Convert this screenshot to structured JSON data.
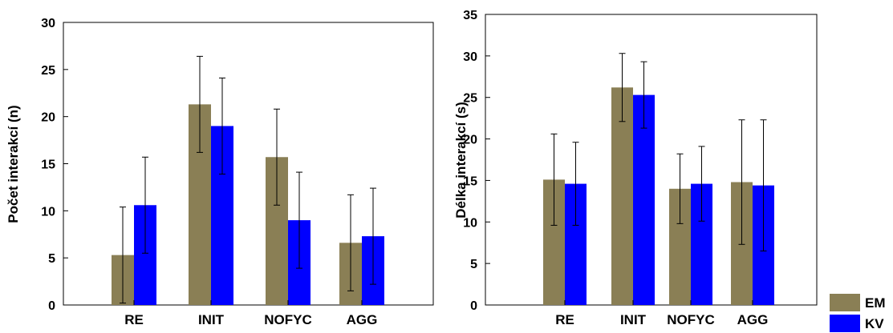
{
  "chart_data": [
    {
      "type": "bar",
      "ylabel": "Počet interakcí (n)",
      "ylim": [
        0,
        30
      ],
      "yticks": [
        0,
        5,
        10,
        15,
        20,
        25,
        30
      ],
      "categories": [
        "RE",
        "INIT",
        "NOFYC",
        "AGG"
      ],
      "series": [
        {
          "name": "EM",
          "color": "#8a7f55",
          "values": [
            5.3,
            21.3,
            15.7,
            6.6
          ],
          "error": [
            5.1,
            5.1,
            5.1,
            5.1
          ]
        },
        {
          "name": "KV",
          "color": "#0000ff",
          "values": [
            10.6,
            19.0,
            9.0,
            7.3
          ],
          "error": [
            5.1,
            5.1,
            5.1,
            5.1
          ]
        }
      ],
      "grid": false
    },
    {
      "type": "bar",
      "ylabel": "Délka interakcí (s)",
      "ylim": [
        0,
        35
      ],
      "yticks": [
        0,
        5,
        10,
        15,
        20,
        25,
        30,
        35
      ],
      "categories": [
        "RE",
        "INIT",
        "NOFYC",
        "AGG"
      ],
      "series": [
        {
          "name": "EM",
          "color": "#8a7f55",
          "values": [
            15.1,
            26.2,
            14.0,
            14.8
          ],
          "error": [
            5.5,
            4.1,
            4.2,
            7.5
          ]
        },
        {
          "name": "KV",
          "color": "#0000ff",
          "values": [
            14.6,
            25.3,
            14.6,
            14.4
          ],
          "error": [
            5.0,
            4.0,
            4.5,
            7.9
          ]
        }
      ],
      "grid": false
    }
  ],
  "legend": {
    "placement": "bottom-right",
    "items": [
      {
        "label": "EM",
        "color": "#8a7f55"
      },
      {
        "label": "KV",
        "color": "#0000ff"
      }
    ]
  }
}
